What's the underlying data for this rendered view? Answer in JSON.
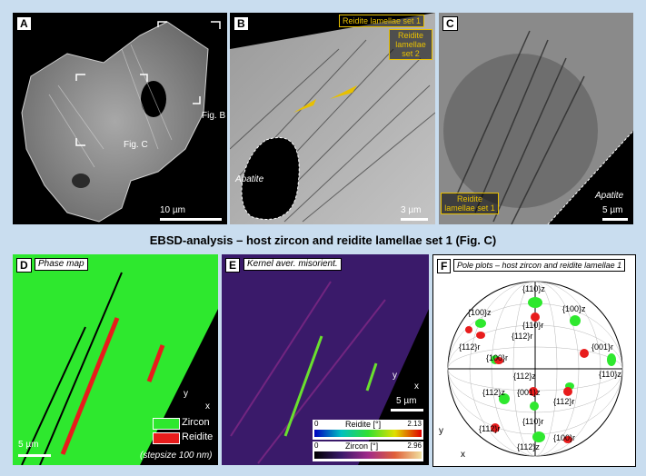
{
  "panel_a": {
    "letter": "A",
    "fig_b": "Fig. B",
    "fig_c": "Fig. C",
    "scale": "10 µm"
  },
  "panel_b": {
    "letter": "B",
    "reidite_set1": "Reidite lamellae set 1",
    "reidite_set2": "Reidite lamellae set 2",
    "apatite": "Apatite",
    "scale": "3 µm"
  },
  "panel_c": {
    "letter": "C",
    "reidite_set1": "Reidite lamellae set 1",
    "apatite": "Apatite",
    "scale": "5 µm"
  },
  "banner": "EBSD-analysis – host zircon and reidite lamellae set 1 (Fig. C)",
  "panel_d": {
    "letter": "D",
    "tag": "Phase map",
    "zircon": "Zircon",
    "reidite": "Reidite",
    "scale": "5 µm",
    "stepsize": "(stepsize 100 nm)",
    "axis_x": "x",
    "axis_y": "y",
    "colors": {
      "zircon": "#2ee82e",
      "reidite": "#e81c1c"
    }
  },
  "panel_e": {
    "letter": "E",
    "tag": "Kernel aver. misorient.",
    "scale": "5 µm",
    "axis_x": "x",
    "axis_y": "y",
    "reidite_bar": {
      "label": "Reidite [°]",
      "min": "0",
      "max": "2.13"
    },
    "zircon_bar": {
      "label": "Zircon [°]",
      "min": "0",
      "max": "2.96"
    }
  },
  "panel_f": {
    "letter": "F",
    "tag": "Pole plots – host zircon and reidite lamellae 1",
    "axis_x": "x",
    "axis_y": "y",
    "labels": [
      {
        "text": "{110}z"
      },
      {
        "text": "{100}z"
      },
      {
        "text": "{100}z"
      },
      {
        "text": "{110}r"
      },
      {
        "text": "{112}r"
      },
      {
        "text": "{112}r"
      },
      {
        "text": "{100}r"
      },
      {
        "text": "{001}r"
      },
      {
        "text": "{110}z"
      },
      {
        "text": "{112}z"
      },
      {
        "text": "{112}z"
      },
      {
        "text": "{001}z"
      },
      {
        "text": "{112}r"
      },
      {
        "text": "{110}r"
      },
      {
        "text": "{112}r"
      },
      {
        "text": "{112}z"
      },
      {
        "text": "{100}r"
      }
    ]
  }
}
